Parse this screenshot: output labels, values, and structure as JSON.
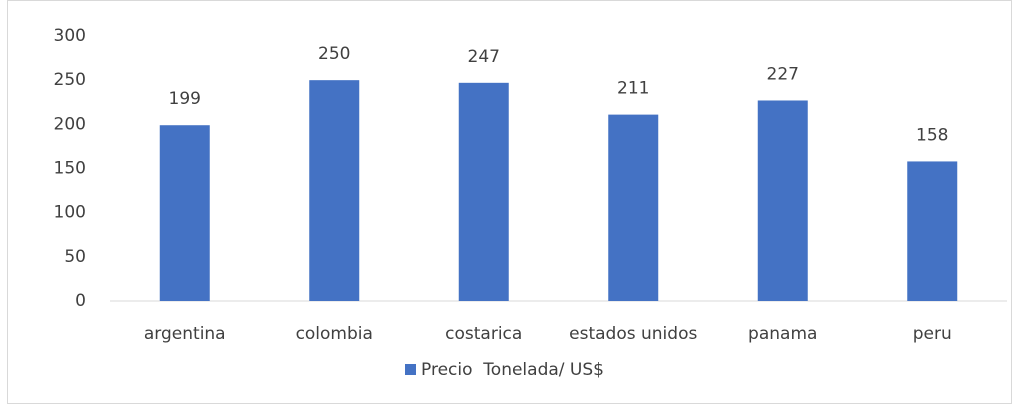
{
  "chart_data": {
    "type": "bar",
    "categories": [
      "argentina",
      "colombia",
      "costarica",
      "estados unidos",
      "panama",
      "peru"
    ],
    "series": [
      {
        "name": "Precio  Tonelada/ US$",
        "color": "#4472c4",
        "values": [
          199,
          250,
          247,
          211,
          227,
          158
        ]
      }
    ],
    "ylim": [
      0,
      300
    ],
    "yticks": [
      0,
      50,
      100,
      150,
      200,
      250,
      300
    ],
    "grid": false,
    "legend": "bottom"
  }
}
